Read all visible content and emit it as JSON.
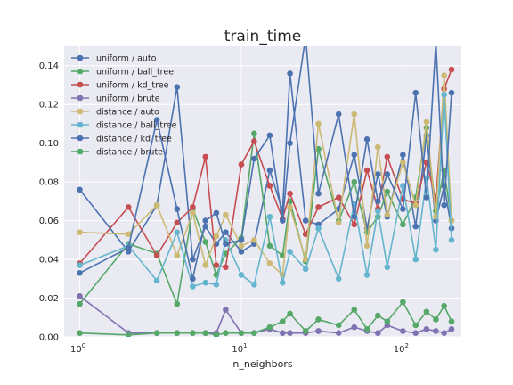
{
  "chart_data": {
    "type": "line",
    "title": "train_time",
    "xlabel": "n_neighbors",
    "ylabel": "",
    "xscale": "log",
    "xlim": [
      0.8,
      230
    ],
    "ylim": [
      0,
      0.15
    ],
    "grid": true,
    "legend_placement": "top-left",
    "x_ticks": [
      {
        "value": 1,
        "base": "10",
        "exp": "0"
      },
      {
        "value": 10,
        "base": "10",
        "exp": "1"
      },
      {
        "value": 100,
        "base": "10",
        "exp": "2"
      }
    ],
    "y_ticks": [
      {
        "value": 0,
        "label": "0.00"
      },
      {
        "value": 0.02,
        "label": "0.02"
      },
      {
        "value": 0.04,
        "label": "0.04"
      },
      {
        "value": 0.06,
        "label": "0.06"
      },
      {
        "value": 0.08,
        "label": "0.08"
      },
      {
        "value": 0.1,
        "label": "0.10"
      },
      {
        "value": 0.12,
        "label": "0.12"
      },
      {
        "value": 0.14,
        "label": "0.14"
      }
    ],
    "series": [
      {
        "name": "uniform / auto",
        "color": "#4C72B0",
        "x": [
          1,
          2,
          3,
          4,
          5,
          6,
          7,
          8,
          10,
          12,
          15,
          18,
          20,
          25,
          30,
          40,
          50,
          60,
          70,
          80,
          100,
          120,
          140,
          160,
          180,
          200
        ],
        "y": [
          0.076,
          0.044,
          0.068,
          0.129,
          0.04,
          0.057,
          0.048,
          0.054,
          0.044,
          0.048,
          0.086,
          0.065,
          0.136,
          0.06,
          0.058,
          0.066,
          0.094,
          0.056,
          0.084,
          0.062,
          0.094,
          0.057,
          0.104,
          0.06,
          0.078,
          0.056
        ]
      },
      {
        "name": "uniform / ball_tree",
        "color": "#55A868",
        "x": [
          1,
          2,
          3,
          4,
          5,
          6,
          7,
          8,
          10,
          12,
          15,
          18,
          20,
          25,
          30,
          40,
          50,
          60,
          70,
          80,
          100,
          120,
          140,
          160,
          180,
          200
        ],
        "y": [
          0.017,
          0.048,
          0.043,
          0.017,
          0.066,
          0.049,
          0.032,
          0.043,
          0.051,
          0.105,
          0.047,
          0.042,
          0.07,
          0.039,
          0.097,
          0.06,
          0.08,
          0.054,
          0.062,
          0.075,
          0.058,
          0.072,
          0.108,
          0.065,
          0.086,
          0.06
        ]
      },
      {
        "name": "uniform / kd_tree",
        "color": "#C44E52",
        "x": [
          1,
          2,
          3,
          4,
          5,
          6,
          7,
          8,
          10,
          12,
          15,
          18,
          20,
          25,
          30,
          40,
          50,
          60,
          70,
          80,
          100,
          120,
          140,
          160,
          180,
          200
        ],
        "y": [
          0.038,
          0.067,
          0.042,
          0.059,
          0.067,
          0.093,
          0.037,
          0.036,
          0.089,
          0.101,
          0.078,
          0.061,
          0.074,
          0.053,
          0.067,
          0.072,
          0.058,
          0.086,
          0.066,
          0.093,
          0.071,
          0.069,
          0.09,
          0.071,
          0.128,
          0.138
        ]
      },
      {
        "name": "uniform / brute",
        "color": "#8172B2",
        "x": [
          1,
          2,
          3,
          4,
          5,
          6,
          7,
          8,
          10,
          12,
          15,
          18,
          20,
          25,
          30,
          40,
          50,
          60,
          70,
          80,
          100,
          120,
          140,
          160,
          180,
          200
        ],
        "y": [
          0.021,
          0.002,
          0.002,
          0.002,
          0.002,
          0.002,
          0.002,
          0.014,
          0.002,
          0.002,
          0.004,
          0.002,
          0.002,
          0.002,
          0.003,
          0.002,
          0.005,
          0.003,
          0.002,
          0.006,
          0.003,
          0.002,
          0.004,
          0.003,
          0.002,
          0.004
        ]
      },
      {
        "name": "distance / auto",
        "color": "#CCB974",
        "x": [
          1,
          2,
          3,
          4,
          5,
          6,
          7,
          8,
          10,
          12,
          15,
          18,
          20,
          25,
          30,
          40,
          50,
          60,
          70,
          80,
          100,
          120,
          140,
          160,
          180,
          200
        ],
        "y": [
          0.054,
          0.053,
          0.068,
          0.042,
          0.064,
          0.037,
          0.052,
          0.063,
          0.047,
          0.05,
          0.038,
          0.032,
          0.067,
          0.04,
          0.11,
          0.059,
          0.115,
          0.047,
          0.098,
          0.063,
          0.09,
          0.068,
          0.111,
          0.062,
          0.135,
          0.06
        ]
      },
      {
        "name": "distance / ball_tree",
        "color": "#64B5CD",
        "x": [
          1,
          2,
          3,
          4,
          5,
          6,
          7,
          8,
          10,
          12,
          15,
          18,
          20,
          25,
          30,
          40,
          50,
          60,
          70,
          80,
          100,
          120,
          140,
          160,
          180,
          200
        ],
        "y": [
          0.037,
          0.047,
          0.029,
          0.054,
          0.026,
          0.028,
          0.027,
          0.05,
          0.032,
          0.027,
          0.062,
          0.028,
          0.044,
          0.035,
          0.056,
          0.03,
          0.069,
          0.032,
          0.065,
          0.036,
          0.078,
          0.04,
          0.082,
          0.045,
          0.125,
          0.05
        ]
      },
      {
        "name": "distance / kd_tree",
        "color": "#4C72B0",
        "x": [
          1,
          2,
          3,
          4,
          5,
          6,
          7,
          8,
          10,
          12,
          15,
          18,
          20,
          25,
          30,
          40,
          50,
          60,
          70,
          80,
          100,
          120,
          140,
          160,
          180,
          200
        ],
        "y": [
          0.033,
          0.046,
          0.112,
          0.066,
          0.03,
          0.06,
          0.064,
          0.048,
          0.05,
          0.092,
          0.104,
          0.06,
          0.1,
          0.155,
          0.074,
          0.115,
          0.062,
          0.102,
          0.07,
          0.084,
          0.066,
          0.126,
          0.072,
          0.152,
          0.068,
          0.126
        ]
      },
      {
        "name": "distance / brute",
        "color": "#55A868",
        "x": [
          1,
          2,
          3,
          4,
          5,
          6,
          7,
          8,
          10,
          12,
          15,
          18,
          20,
          25,
          30,
          40,
          50,
          60,
          70,
          80,
          100,
          120,
          140,
          160,
          180,
          200
        ],
        "y": [
          0.002,
          0.001,
          0.002,
          0.002,
          0.002,
          0.002,
          0.001,
          0.002,
          0.002,
          0.002,
          0.005,
          0.008,
          0.012,
          0.003,
          0.009,
          0.006,
          0.014,
          0.004,
          0.011,
          0.008,
          0.018,
          0.006,
          0.013,
          0.009,
          0.016,
          0.008
        ]
      }
    ]
  }
}
